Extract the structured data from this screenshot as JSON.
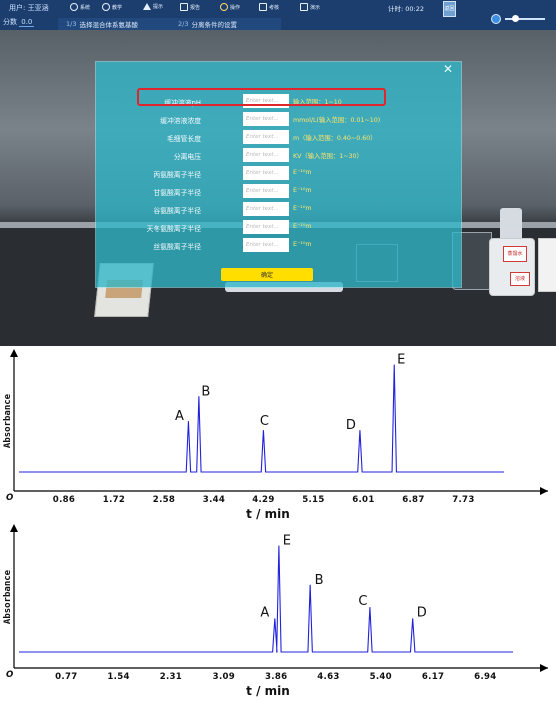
{
  "toolbar": {
    "user": "用户: 王亚涵",
    "score_label": "分数",
    "score_value": "0.0",
    "items": [
      "系统",
      "教学",
      "提示",
      "报告",
      "操作",
      "考核",
      "演示"
    ],
    "timer": "计时: 00:22",
    "back": "返回",
    "steps": [
      {
        "num": "1/3",
        "label": "选择混合体系氨基酸"
      },
      {
        "num": "2/3",
        "label": "分离条件的设置"
      }
    ]
  },
  "scene": {
    "bottle_label": "蒸馏水",
    "bottle_label2": "溶液"
  },
  "dialog": {
    "close": "✕",
    "placeholder": "Enter text...",
    "rows": [
      {
        "label": "缓冲溶液pH",
        "hint": "输入范围：1~10"
      },
      {
        "label": "缓冲溶液浓度",
        "hint": "mmol/L(输入范围：0.01~10)"
      },
      {
        "label": "毛细管长度",
        "hint": "m（输入范围：0.40~0.60）"
      },
      {
        "label": "分离电压",
        "hint": "KV（输入范围：1~30）"
      },
      {
        "label": "丙氨酸离子半径",
        "hint": "E⁻¹⁰m"
      },
      {
        "label": "甘氨酸离子半径",
        "hint": "E⁻¹⁰m"
      },
      {
        "label": "谷氨酸离子半径",
        "hint": "E⁻¹⁰m"
      },
      {
        "label": "天冬氨酸离子半径",
        "hint": "E⁻¹⁰m"
      },
      {
        "label": "丝氨酸离子半径",
        "hint": "E⁻¹⁰m"
      }
    ],
    "ok": "确定"
  },
  "chart_data": [
    {
      "type": "line",
      "xlabel": "t / min",
      "ylabel": "Absorbance",
      "origin_label": "O",
      "xlim": [
        0,
        8.6
      ],
      "x_ticks": [
        "0.86",
        "1.72",
        "2.58",
        "3.44",
        "4.29",
        "5.15",
        "6.01",
        "6.87",
        "7.73"
      ],
      "color": "#2222dd",
      "peaks": [
        {
          "label": "A",
          "x": 3.0,
          "height": 0.45
        },
        {
          "label": "B",
          "x": 3.18,
          "height": 0.67
        },
        {
          "label": "C",
          "x": 4.29,
          "height": 0.37
        },
        {
          "label": "D",
          "x": 5.95,
          "height": 0.37
        },
        {
          "label": "E",
          "x": 6.54,
          "height": 0.95
        }
      ]
    },
    {
      "type": "line",
      "xlabel": "t / min",
      "ylabel": "Absorbance",
      "origin_label": "O",
      "xlim": [
        0,
        7.7
      ],
      "x_ticks": [
        "0.77",
        "1.54",
        "2.31",
        "3.09",
        "3.86",
        "4.63",
        "5.40",
        "6.17",
        "6.94"
      ],
      "color": "#2222dd",
      "peaks": [
        {
          "label": "A",
          "x": 3.84,
          "height": 0.3
        },
        {
          "label": "E",
          "x": 3.9,
          "height": 0.95
        },
        {
          "label": "B",
          "x": 4.36,
          "height": 0.6
        },
        {
          "label": "C",
          "x": 5.24,
          "height": 0.4
        },
        {
          "label": "D",
          "x": 5.87,
          "height": 0.3
        }
      ]
    }
  ]
}
